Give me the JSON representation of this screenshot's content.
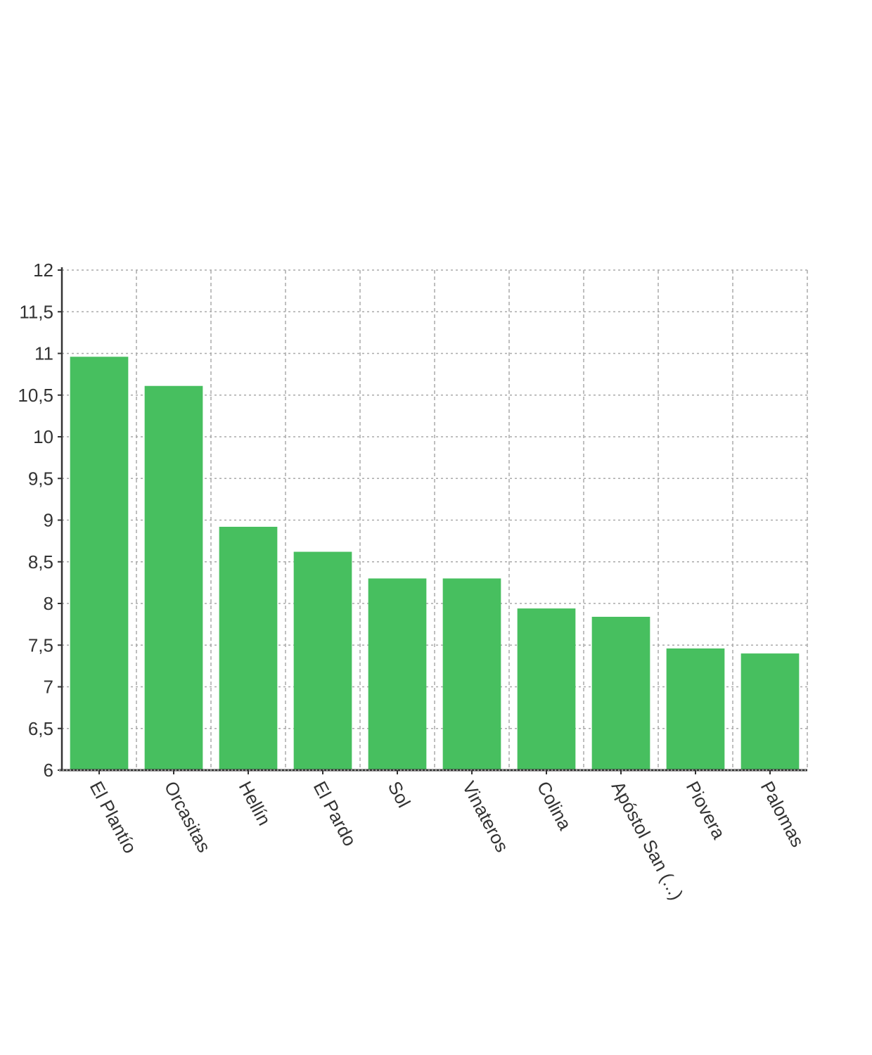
{
  "chart_data": {
    "type": "bar",
    "title": "",
    "xlabel": "",
    "ylabel": "",
    "categories": [
      "El Plantío",
      "Orcasitas",
      "Hellín",
      "El Pardo",
      "Sol",
      "Vinateros",
      "Colina",
      "Apóstol San (...)",
      "Piovera",
      "Palomas"
    ],
    "values": [
      10.96,
      10.61,
      8.92,
      8.62,
      8.3,
      8.3,
      7.94,
      7.84,
      7.46,
      7.4
    ],
    "ylim": [
      6,
      12
    ],
    "yticks": [
      6,
      6.5,
      7,
      7.5,
      8,
      8.5,
      9,
      9.5,
      10,
      10.5,
      11,
      11.5,
      12
    ],
    "ytick_labels": [
      "6",
      "6,5",
      "7",
      "7,5",
      "8",
      "8,5",
      "9",
      "9,5",
      "10",
      "10,5",
      "11",
      "11,5",
      "12"
    ],
    "grid": true,
    "legend": "none",
    "bar_color": "#47bf5f",
    "axis_color": "#333333",
    "grid_color": "#aaaaaa"
  }
}
